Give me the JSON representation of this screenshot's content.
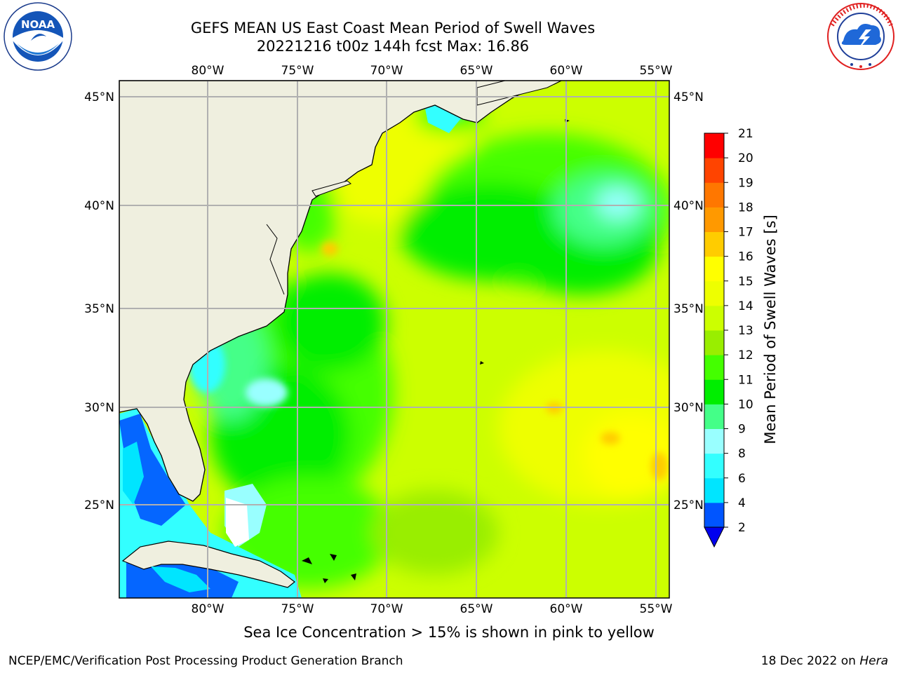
{
  "title": {
    "line1": "GEFS MEAN US East Coast Mean Period of Swell Waves",
    "line2": "20221216 t00z 144h fcst   Max: 16.86"
  },
  "logos": {
    "noaa": {
      "text": "NOAA",
      "ring_text": "NATIONAL OCEANIC AND ATMOSPHERIC ADMINISTRATION · U.S. DEPARTMENT OF COMMERCE",
      "icon": "noaa-seal-icon"
    },
    "nws": {
      "ring_text": "NATIONAL WEATHER SERVICE",
      "icon": "nws-seal-icon"
    }
  },
  "map": {
    "lon_labels": [
      "80°W",
      "75°W",
      "70°W",
      "65°W",
      "60°W",
      "55°W"
    ],
    "lat_labels": [
      "45°N",
      "40°N",
      "35°N",
      "30°N",
      "25°N"
    ],
    "extent": {
      "lon": [
        -85,
        -54
      ],
      "lat": [
        20.5,
        46
      ]
    },
    "colors": {
      "land": "#efefdf",
      "grid": "#b0b0b0",
      "coast": "#000000"
    }
  },
  "colorbar": {
    "label": "Mean Period of Swell Waves [s]",
    "ticks": [
      "2",
      "4",
      "6",
      "8",
      "9",
      "10",
      "11",
      "12",
      "13",
      "14",
      "15",
      "16",
      "17",
      "18",
      "19",
      "20",
      "21"
    ],
    "colors": [
      "#0055ff",
      "#00e5ff",
      "#33ffff",
      "#99ffff",
      "#44ff88",
      "#00ee00",
      "#44ff00",
      "#99ee00",
      "#ccff00",
      "#eeff00",
      "#ffff00",
      "#ffcc00",
      "#ff9900",
      "#ff7700",
      "#ff4400",
      "#ff0000"
    ],
    "extend_color": "#0000ee"
  },
  "footer": {
    "note": "Sea Ice Concentration > 15% is shown in pink to yellow",
    "credit": "NCEP/EMC/Verification Post Processing Product Generation Branch",
    "date": "18 Dec 2022 on",
    "host": "Hera"
  }
}
